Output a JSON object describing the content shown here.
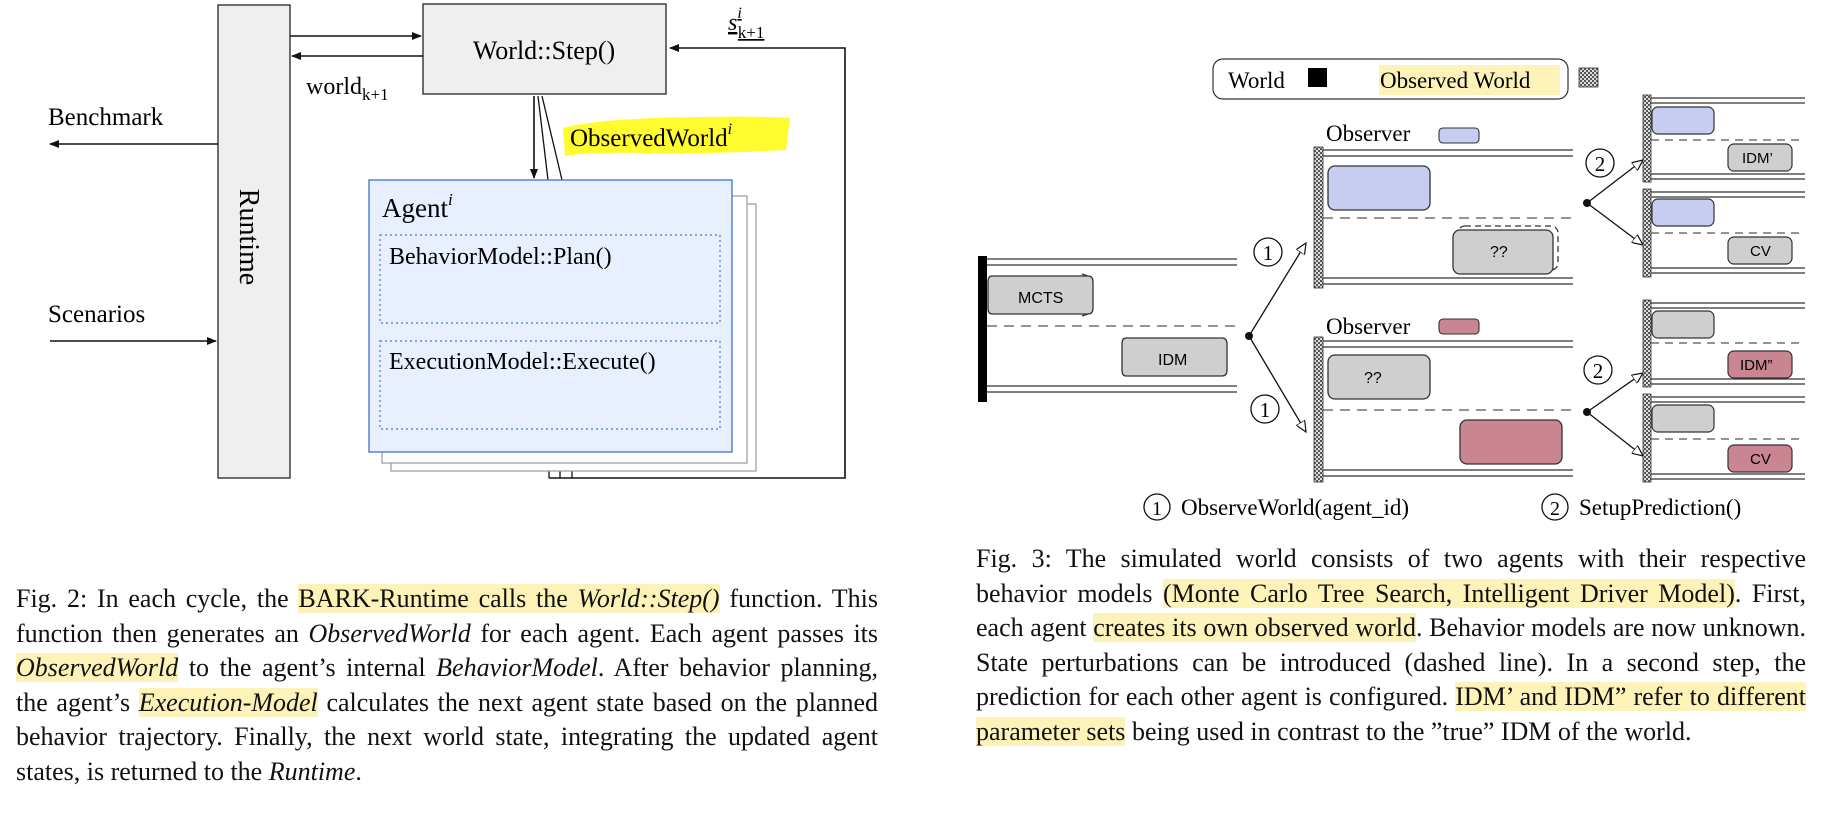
{
  "fig2": {
    "runtime_label": "Runtime",
    "world_step_label": "World::Step()",
    "world_next_label": "world",
    "world_next_sub": "k+1",
    "state_label": "s",
    "state_sup": "i",
    "state_sub": "k+1",
    "observed_world_label": "ObservedWorld",
    "observed_world_sup": "i",
    "benchmark_label": "Benchmark",
    "scenarios_label": "Scenarios",
    "agent_label": "Agent",
    "agent_sup": "i",
    "behavior_plan_label": "BehaviorModel::Plan()",
    "execution_label": "ExecutionModel::Execute()",
    "colors": {
      "highlight_yellow": "#fffb2e",
      "agent_fill": "#e8efff",
      "agent_border": "#4a7bd0",
      "runtime_fill": "#efefef"
    }
  },
  "fig3": {
    "legend_world": "World",
    "legend_observed": "Observed World",
    "observer_label": "Observer",
    "mcts_label": "MCTS",
    "idm_label": "IDM",
    "unknown_label": "??",
    "idm_prime_label": "IDM’",
    "idm_dprime_label": "IDM”",
    "cv_label": "CV",
    "step1_num": "1",
    "step2_num": "2",
    "step1_text": "ObserveWorld(agent_id)",
    "step2_text": "SetupPrediction()",
    "colors": {
      "blue_car": "#c7cdf0",
      "red_car": "#c98592",
      "gray_car": "#cfcfcf",
      "legend_highlight": "#fdf3b8"
    }
  },
  "caption2": {
    "s1": "Fig. 2: In each cycle, the ",
    "h1": "BARK-Runtime calls the ",
    "h1i": "World::Step()",
    "s2": " function. This function then generates an ",
    "i1": "ObservedWorld",
    "s3": " for each agent. Each agent passes its ",
    "h2i": "ObservedWorld",
    "s4": " to the agent’s internal ",
    "i2": "BehaviorModel",
    "s5": ". After behavior planning, the agent’s ",
    "h3i": "Execution-Model",
    "s6": " calculates the next agent state based on the planned behavior trajectory. Finally, the next world state, integrating the updated agent states, is returned to the ",
    "i3": "Runtime",
    "s7": "."
  },
  "caption3": {
    "s1": "Fig. 3: The simulated world consists of two agents with their respective behavior models ",
    "h1": "(Monte Carlo Tree Search, Intelligent Driver Model)",
    "s2": ". First, each agent ",
    "h2": "creates its own observed world",
    "s3": ". Behavior models are now unknown. State perturbations can be introduced (dashed line). In a second step, the prediction for each other agent is configured. ",
    "h3": "IDM’ and IDM” refer to different parameter sets",
    "s4": " being used in contrast to the ”true” IDM of the world."
  }
}
